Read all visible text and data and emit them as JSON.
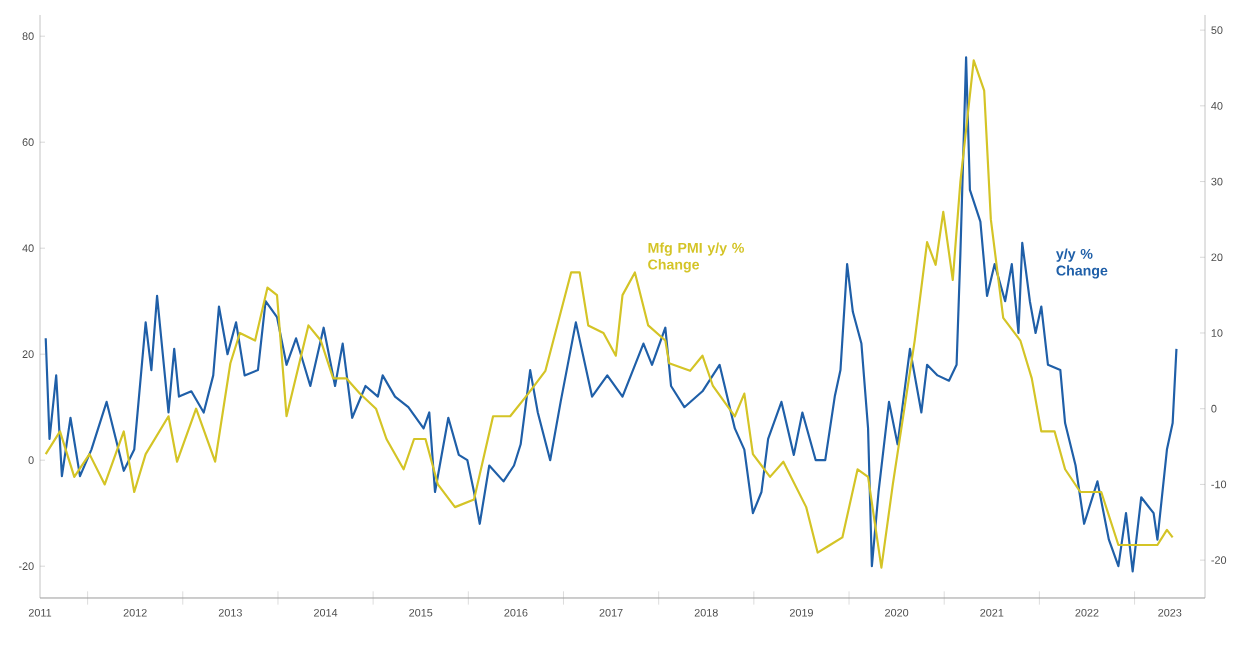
{
  "chart_data": {
    "type": "line",
    "xlim": [
      2011.5,
      2023.74
    ],
    "xticks": [
      {
        "value": 2012,
        "label": null
      },
      {
        "value": 2013,
        "label": null
      },
      {
        "value": 2014,
        "label": null
      },
      {
        "value": 2015,
        "label": null
      },
      {
        "value": 2016,
        "label": null
      },
      {
        "value": 2017,
        "label": null
      },
      {
        "value": 2018,
        "label": null
      },
      {
        "value": 2019,
        "label": null
      },
      {
        "value": 2020,
        "label": null
      },
      {
        "value": 2021,
        "label": null
      },
      {
        "value": 2022,
        "label": null
      },
      {
        "value": 2023,
        "label": null
      },
      {
        "value": 2011.5,
        "label": "2011"
      },
      {
        "value": 2012.5,
        "label": "2012"
      },
      {
        "value": 2013.5,
        "label": "2013"
      },
      {
        "value": 2014.5,
        "label": "2014"
      },
      {
        "value": 2015.5,
        "label": "2015"
      },
      {
        "value": 2016.5,
        "label": "2016"
      },
      {
        "value": 2017.5,
        "label": "2017"
      },
      {
        "value": 2018.5,
        "label": "2018"
      },
      {
        "value": 2019.5,
        "label": "2019"
      },
      {
        "value": 2020.5,
        "label": "2020"
      },
      {
        "value": 2021.5,
        "label": "2021"
      },
      {
        "value": 2022.5,
        "label": "2022"
      },
      {
        "value": 2023.37,
        "label": "2023"
      }
    ],
    "ylim": [
      -26,
      84
    ],
    "yticks": [
      -20,
      0,
      20,
      40,
      60,
      80
    ],
    "y2lim": [
      -25,
      52
    ],
    "y2ticks": [
      -20,
      -10,
      0,
      10,
      20,
      30,
      40,
      50
    ],
    "series": [
      {
        "name": "y/y % Change",
        "color": "#1f5fa8",
        "x": [
          2011.56,
          2011.6,
          2011.67,
          2011.73,
          2011.82,
          2011.92,
          2012.04,
          2012.2,
          2012.38,
          2012.49,
          2012.61,
          2012.67,
          2012.73,
          2012.85,
          2012.91,
          2012.96,
          2013.09,
          2013.22,
          2013.32,
          2013.38,
          2013.47,
          2013.56,
          2013.65,
          2013.79,
          2013.87,
          2013.99,
          2014.09,
          2014.19,
          2014.34,
          2014.48,
          2014.6,
          2014.68,
          2014.78,
          2014.92,
          2015.05,
          2015.1,
          2015.23,
          2015.37,
          2015.53,
          2015.59,
          2015.65,
          2015.79,
          2015.9,
          2015.99,
          2016.06,
          2016.12,
          2016.22,
          2016.37,
          2016.48,
          2016.55,
          2016.65,
          2016.73,
          2016.86,
          2016.97,
          2017.13,
          2017.3,
          2017.46,
          2017.62,
          2017.84,
          2017.93,
          2018.07,
          2018.13,
          2018.27,
          2018.46,
          2018.64,
          2018.8,
          2018.9,
          2018.99,
          2019.08,
          2019.15,
          2019.29,
          2019.42,
          2019.51,
          2019.65,
          2019.75,
          2019.85,
          2019.91,
          2019.98,
          2020.04,
          2020.13,
          2020.2,
          2020.24,
          2020.31,
          2020.42,
          2020.51,
          2020.64,
          2020.76,
          2020.82,
          2020.93,
          2021.05,
          2021.13,
          2021.17,
          2021.23,
          2021.27,
          2021.38,
          2021.45,
          2021.53,
          2021.64,
          2021.71,
          2021.78,
          2021.82,
          2021.9,
          2021.96,
          2022.02,
          2022.09,
          2022.22,
          2022.27,
          2022.38,
          2022.47,
          2022.61,
          2022.73,
          2022.83,
          2022.91,
          2022.98,
          2023.07,
          2023.2,
          2023.24,
          2023.34,
          2023.4,
          2023.44
        ],
        "values": [
          23,
          4,
          16,
          -3,
          8,
          -3,
          2,
          11,
          -2,
          2,
          26,
          17,
          31,
          9,
          21,
          12,
          13,
          9,
          16,
          29,
          20,
          26,
          16,
          17,
          30,
          27,
          18,
          23,
          14,
          25,
          14,
          22,
          8,
          14,
          12,
          16,
          12,
          10,
          6,
          9,
          -6,
          8,
          1,
          0,
          -6,
          -12,
          -1,
          -4,
          -1,
          3,
          17,
          9,
          0,
          11,
          26,
          12,
          16,
          12,
          22,
          18,
          25,
          14,
          10,
          13,
          18,
          6,
          2,
          -10,
          -6,
          4,
          11,
          1,
          9,
          0,
          0,
          12,
          17,
          37,
          28,
          22,
          6,
          -20,
          -6,
          11,
          3,
          21,
          9,
          18,
          16,
          15,
          18,
          39,
          76,
          51,
          45,
          31,
          37,
          30,
          37,
          24,
          41,
          30,
          24,
          29,
          18,
          17,
          7,
          -1,
          -12,
          -4,
          -15,
          -20,
          -10,
          -21,
          -7,
          -10,
          -15,
          2,
          7,
          21
        ]
      },
      {
        "name": "Mfg PMI y/y % Change",
        "color": "#d4c426",
        "axis": "y2",
        "x": [
          2011.56,
          2011.71,
          2011.86,
          2012.02,
          2012.18,
          2012.38,
          2012.49,
          2012.61,
          2012.85,
          2012.94,
          2013.14,
          2013.34,
          2013.5,
          2013.6,
          2013.76,
          2013.89,
          2013.99,
          2014.09,
          2014.32,
          2014.45,
          2014.58,
          2014.72,
          2014.86,
          2015.03,
          2015.14,
          2015.32,
          2015.43,
          2015.55,
          2015.68,
          2015.86,
          2016.06,
          2016.26,
          2016.44,
          2016.63,
          2016.81,
          2017.08,
          2017.17,
          2017.26,
          2017.42,
          2017.55,
          2017.62,
          2017.75,
          2017.89,
          2018.07,
          2018.11,
          2018.33,
          2018.46,
          2018.57,
          2018.8,
          2018.9,
          2018.99,
          2019.17,
          2019.31,
          2019.55,
          2019.67,
          2019.8,
          2019.93,
          2020.09,
          2020.2,
          2020.34,
          2020.46,
          2020.69,
          2020.82,
          2020.91,
          2020.99,
          2021.09,
          2021.17,
          2021.31,
          2021.42,
          2021.49,
          2021.62,
          2021.8,
          2021.92,
          2022.02,
          2022.16,
          2022.27,
          2022.43,
          2022.65,
          2022.83,
          2022.96,
          2023.09,
          2023.24,
          2023.34,
          2023.4
        ],
        "values": [
          -6,
          -3,
          -9,
          -6,
          -10,
          -3,
          -11,
          -6,
          -1,
          -7,
          0,
          -7,
          6,
          10,
          9,
          16,
          15,
          -1,
          11,
          9,
          4,
          4,
          2,
          0,
          -4,
          -8,
          -4,
          -4,
          -10,
          -13,
          -12,
          -1,
          -1,
          2,
          5,
          18,
          18,
          11,
          10,
          7,
          15,
          18,
          11,
          9,
          6,
          5,
          7,
          3,
          -1,
          2,
          -6,
          -9,
          -7,
          -13,
          -19,
          -18,
          -17,
          -8,
          -9,
          -21,
          -10,
          9,
          22,
          19,
          26,
          17,
          30,
          46,
          42,
          25,
          12,
          9,
          4,
          -3,
          -3,
          -8,
          -11,
          -11,
          -18,
          -18,
          -18,
          -18,
          -16,
          -17
        ]
      }
    ]
  }
}
